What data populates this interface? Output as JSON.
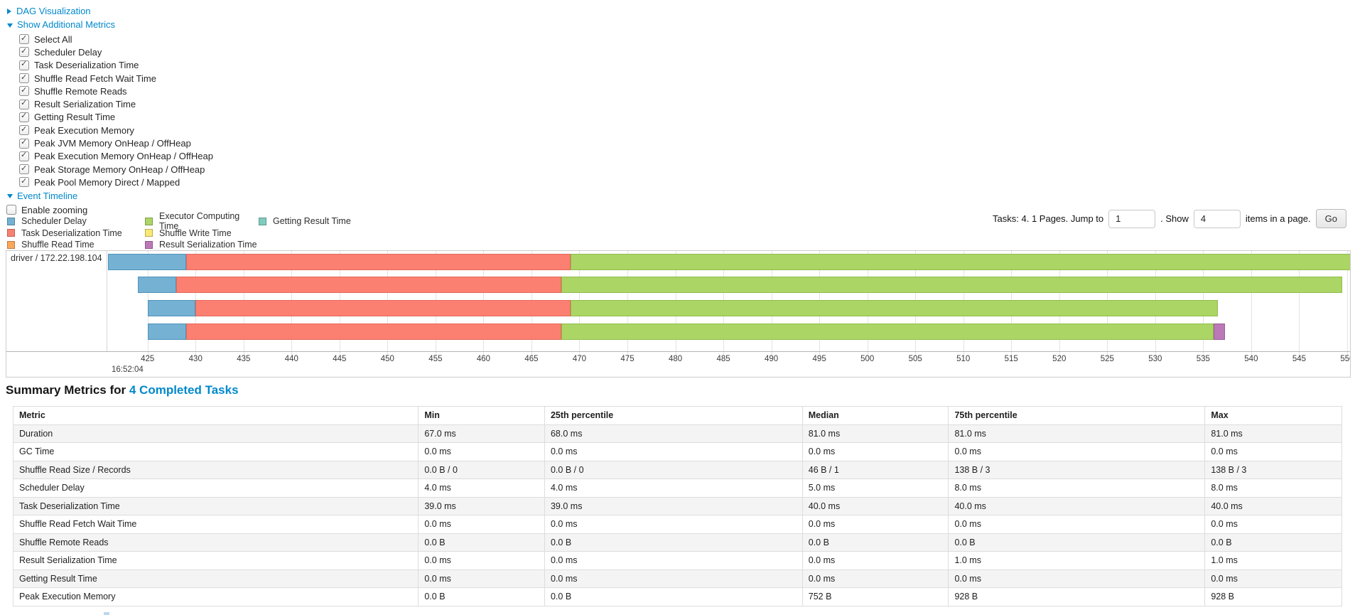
{
  "controls": {
    "dag_label": "DAG Visualization",
    "metrics_label": "Show Additional Metrics",
    "metric_checkboxes": [
      {
        "label": "Select All",
        "checked": true
      },
      {
        "label": "Scheduler Delay",
        "checked": true
      },
      {
        "label": "Task Deserialization Time",
        "checked": true
      },
      {
        "label": "Shuffle Read Fetch Wait Time",
        "checked": true
      },
      {
        "label": "Shuffle Remote Reads",
        "checked": true
      },
      {
        "label": "Result Serialization Time",
        "checked": true
      },
      {
        "label": "Getting Result Time",
        "checked": true
      },
      {
        "label": "Peak Execution Memory",
        "checked": true
      },
      {
        "label": "Peak JVM Memory OnHeap / OffHeap",
        "checked": true
      },
      {
        "label": "Peak Execution Memory OnHeap / OffHeap",
        "checked": true
      },
      {
        "label": "Peak Storage Memory OnHeap / OffHeap",
        "checked": true
      },
      {
        "label": "Peak Pool Memory Direct / Mapped",
        "checked": true
      }
    ],
    "timeline_label": "Event Timeline",
    "enable_zooming": {
      "label": "Enable zooming",
      "checked": false
    }
  },
  "legend": {
    "rows": [
      [
        "scheduler_delay",
        "executor_computing",
        "getting_result"
      ],
      [
        "task_deserialization",
        "shuffle_write"
      ],
      [
        "shuffle_read",
        "result_serialization"
      ]
    ]
  },
  "pagination": {
    "tasks_text": "Tasks: 4. 1 Pages. Jump to",
    "jump_value": "1",
    "show_text": ". Show",
    "show_value": "4",
    "items_text": "items in a page.",
    "go_label": "Go"
  },
  "chart_data": {
    "type": "timeline",
    "group_label": "driver / 172.22.198.104",
    "axis": {
      "view_min": 420.8,
      "view_max": 550.3,
      "ticks": [
        425,
        430,
        435,
        440,
        445,
        450,
        455,
        460,
        465,
        470,
        475,
        480,
        485,
        490,
        495,
        500,
        505,
        510,
        515,
        520,
        525,
        530,
        535,
        540,
        545,
        550
      ],
      "major_label": "16:52:04"
    },
    "colors": {
      "scheduler_delay": {
        "label": "Scheduler Delay",
        "fill": "#74B1D3",
        "border": "#5093BB"
      },
      "task_deserialization": {
        "label": "Task Deserialization Time",
        "fill": "#FC8071",
        "border": "#E4685B"
      },
      "shuffle_read": {
        "label": "Shuffle Read Time",
        "fill": "#FBA85C",
        "border": "#E08E41"
      },
      "executor_computing": {
        "label": "Executor Computing Time",
        "fill": "#ABD565",
        "border": "#90BD4A"
      },
      "shuffle_write": {
        "label": "Shuffle Write Time",
        "fill": "#F8E874",
        "border": "#D9C757"
      },
      "getting_result": {
        "label": "Getting Result Time",
        "fill": "#7FCCBF",
        "border": "#62B2A4"
      },
      "result_serialization": {
        "label": "Result Serialization Time",
        "fill": "#BB79B8",
        "border": "#9D5C9B"
      }
    },
    "tasks": [
      {
        "name": "task-1",
        "segments": [
          {
            "metric": "scheduler_delay",
            "from": 420.9,
            "to": 429.0
          },
          {
            "metric": "task_deserialization",
            "from": 429.0,
            "to": 469.1
          },
          {
            "metric": "executor_computing",
            "from": 469.1,
            "to": 550.5
          }
        ]
      },
      {
        "name": "task-2",
        "segments": [
          {
            "metric": "scheduler_delay",
            "from": 424.0,
            "to": 428.0
          },
          {
            "metric": "task_deserialization",
            "from": 428.0,
            "to": 468.1
          },
          {
            "metric": "executor_computing",
            "from": 468.1,
            "to": 549.5
          }
        ]
      },
      {
        "name": "task-3",
        "segments": [
          {
            "metric": "scheduler_delay",
            "from": 425.0,
            "to": 430.0
          },
          {
            "metric": "task_deserialization",
            "from": 430.0,
            "to": 469.1
          },
          {
            "metric": "executor_computing",
            "from": 469.1,
            "to": 536.5
          }
        ]
      },
      {
        "name": "task-4",
        "segments": [
          {
            "metric": "scheduler_delay",
            "from": 425.0,
            "to": 429.0
          },
          {
            "metric": "task_deserialization",
            "from": 429.0,
            "to": 468.1
          },
          {
            "metric": "executor_computing",
            "from": 468.1,
            "to": 536.1
          },
          {
            "metric": "result_serialization",
            "from": 536.1,
            "to": 537.3
          }
        ]
      }
    ]
  },
  "summary": {
    "title_prefix": "Summary Metrics for",
    "title_link": "4 Completed Tasks",
    "table": {
      "headers": [
        "Metric",
        "Min",
        "25th percentile",
        "Median",
        "75th percentile",
        "Max"
      ],
      "rows": [
        {
          "metric": "Duration",
          "values": [
            "67.0 ms",
            "68.0 ms",
            "81.0 ms",
            "81.0 ms",
            "81.0 ms"
          ]
        },
        {
          "metric": "GC Time",
          "values": [
            "0.0 ms",
            "0.0 ms",
            "0.0 ms",
            "0.0 ms",
            "0.0 ms"
          ]
        },
        {
          "metric": "Shuffle Read Size / Records",
          "values": [
            "0.0 B / 0",
            "0.0 B / 0",
            "46 B / 1",
            "138 B / 3",
            "138 B / 3"
          ]
        },
        {
          "metric": "Scheduler Delay",
          "values": [
            "4.0 ms",
            "4.0 ms",
            "5.0 ms",
            "8.0 ms",
            "8.0 ms"
          ]
        },
        {
          "metric": "Task Deserialization Time",
          "values": [
            "39.0 ms",
            "39.0 ms",
            "40.0 ms",
            "40.0 ms",
            "40.0 ms"
          ]
        },
        {
          "metric": "Shuffle Read Fetch Wait Time",
          "values": [
            "0.0 ms",
            "0.0 ms",
            "0.0 ms",
            "0.0 ms",
            "0.0 ms"
          ]
        },
        {
          "metric": "Shuffle Remote Reads",
          "values": [
            "0.0 B",
            "0.0 B",
            "0.0 B",
            "0.0 B",
            "0.0 B"
          ]
        },
        {
          "metric": "Result Serialization Time",
          "values": [
            "0.0 ms",
            "0.0 ms",
            "0.0 ms",
            "1.0 ms",
            "1.0 ms"
          ]
        },
        {
          "metric": "Getting Result Time",
          "values": [
            "0.0 ms",
            "0.0 ms",
            "0.0 ms",
            "0.0 ms",
            "0.0 ms"
          ]
        },
        {
          "metric": "Peak Execution Memory",
          "values": [
            "0.0 B",
            "0.0 B",
            "752 B",
            "928 B",
            "928 B"
          ]
        }
      ]
    }
  }
}
